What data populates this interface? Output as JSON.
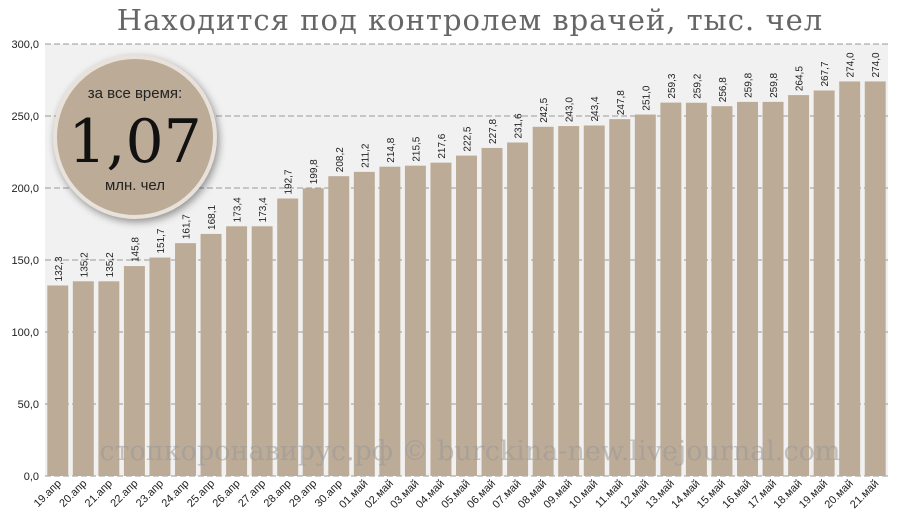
{
  "chart_data": {
    "type": "bar",
    "title": "Находится под контролем врачей, тыс. чел",
    "categories": [
      "19.апр",
      "20.апр",
      "21.апр",
      "22.апр",
      "23.апр",
      "24.апр",
      "25.апр",
      "26.апр",
      "27.апр",
      "28.апр",
      "29.апр",
      "30.апр",
      "01.май",
      "02.май",
      "03.май",
      "04.май",
      "05.май",
      "06.май",
      "07.май",
      "08.май",
      "09.май",
      "10.май",
      "11.май",
      "12.май",
      "13.май",
      "14.май",
      "15.май",
      "16.май",
      "17.май",
      "18.май",
      "19.май",
      "20.май",
      "21.май"
    ],
    "values": [
      132.3,
      135.2,
      135.2,
      145.8,
      151.7,
      161.7,
      168.1,
      173.4,
      173.4,
      192.7,
      199.8,
      208.2,
      211.2,
      214.8,
      215.5,
      217.6,
      222.5,
      227.8,
      231.6,
      242.5,
      243.0,
      243.4,
      247.8,
      251.0,
      259.3,
      259.2,
      256.8,
      259.8,
      259.8,
      264.5,
      267.7,
      274.0,
      274.0
    ],
    "value_labels": [
      "132,3",
      "135,2",
      "135,2",
      "145,8",
      "151,7",
      "161,7",
      "168,1",
      "173,4",
      "173,4",
      "192,7",
      "199,8",
      "208,2",
      "211,2",
      "214,8",
      "215,5",
      "217,6",
      "222,5",
      "227,8",
      "231,6",
      "242,5",
      "243,0",
      "243,4",
      "247,8",
      "251,0",
      "259,3",
      "259,2",
      "256,8",
      "259,8",
      "259,8",
      "264,5",
      "267,7",
      "274,0",
      "274,0"
    ],
    "color": "#bcab96",
    "ylim": [
      0,
      300
    ],
    "yticks": [
      {
        "value": 0,
        "label": "0,0"
      },
      {
        "value": 50,
        "label": "50,0"
      },
      {
        "value": 100,
        "label": "100,0"
      },
      {
        "value": 150,
        "label": "150,0"
      },
      {
        "value": 200,
        "label": "200,0"
      },
      {
        "value": 250,
        "label": "250,0"
      },
      {
        "value": 300,
        "label": "300,0"
      }
    ],
    "grid": true,
    "annotations": {
      "total_caption": "за все время:",
      "total_value": "1,07",
      "total_unit": "млн. чел",
      "watermark": "стопкоронавирус.рф © burckina-new.livejournal.com"
    }
  }
}
